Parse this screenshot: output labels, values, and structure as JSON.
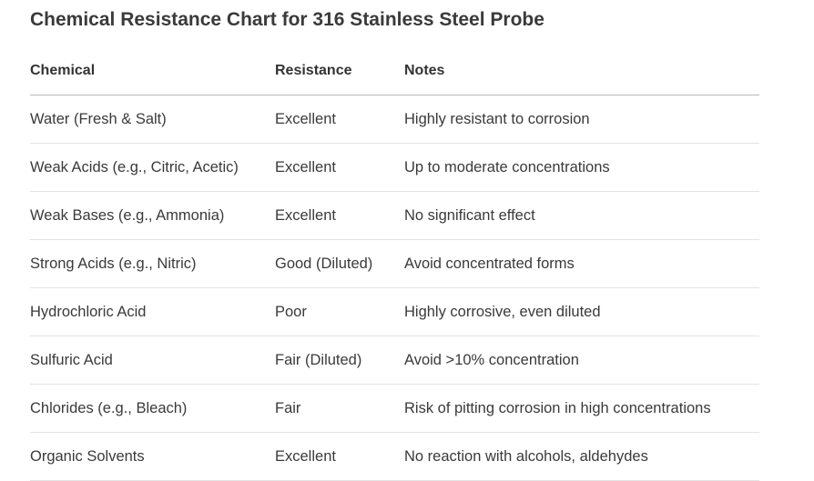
{
  "title": "Chemical Resistance Chart for 316 Stainless Steel Probe",
  "table": {
    "headers": [
      "Chemical",
      "Resistance",
      "Notes"
    ],
    "rows": [
      {
        "chemical": "Water (Fresh & Salt)",
        "resistance": "Excellent",
        "notes": "Highly resistant to corrosion"
      },
      {
        "chemical": "Weak Acids (e.g., Citric, Acetic)",
        "resistance": "Excellent",
        "notes": "Up to moderate concentrations"
      },
      {
        "chemical": "Weak Bases (e.g., Ammonia)",
        "resistance": "Excellent",
        "notes": "No significant effect"
      },
      {
        "chemical": "Strong Acids (e.g., Nitric)",
        "resistance": "Good (Diluted)",
        "notes": "Avoid concentrated forms"
      },
      {
        "chemical": "Hydrochloric Acid",
        "resistance": "Poor",
        "notes": "Highly corrosive, even diluted"
      },
      {
        "chemical": "Sulfuric Acid",
        "resistance": "Fair (Diluted)",
        "notes": "Avoid >10% concentration"
      },
      {
        "chemical": "Chlorides (e.g., Bleach)",
        "resistance": "Fair",
        "notes": "Risk of pitting corrosion in high concentrations"
      },
      {
        "chemical": "Organic Solvents",
        "resistance": "Excellent",
        "notes": "No reaction with alcohols, aldehydes"
      }
    ]
  }
}
